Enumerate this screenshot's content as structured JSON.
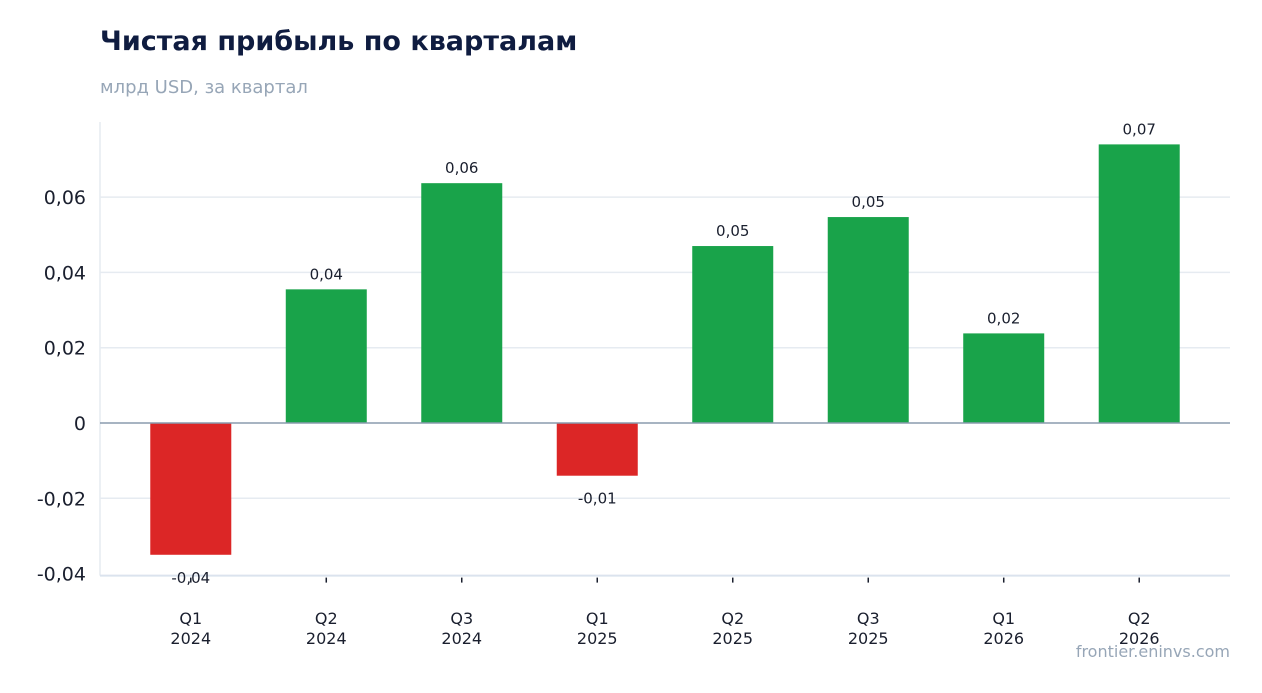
{
  "title": "Чистая прибыль по кварталам",
  "subtitle": "млрд USD, за квартал",
  "source": "frontier.eninvs.com",
  "colors": {
    "positive": "#19a34a",
    "negative": "#dc2626"
  },
  "chart_data": {
    "type": "bar",
    "categories": [
      [
        "Q1",
        "2024"
      ],
      [
        "Q2",
        "2024"
      ],
      [
        "Q3",
        "2024"
      ],
      [
        "Q1",
        "2025"
      ],
      [
        "Q2",
        "2025"
      ],
      [
        "Q3",
        "2025"
      ],
      [
        "Q1",
        "2026"
      ],
      [
        "Q2",
        "2026"
      ]
    ],
    "values": [
      -0.035,
      0.0355,
      0.0637,
      -0.014,
      0.047,
      0.0547,
      0.0238,
      0.074
    ],
    "value_labels": [
      "-0,04",
      "0,04",
      "0,06",
      "-0,01",
      "0,05",
      "0,05",
      "0,02",
      "0,07"
    ],
    "ylim": [
      -0.04,
      0.08
    ],
    "yticks": [
      -0.04,
      -0.02,
      0,
      0.02,
      0.04,
      0.06
    ],
    "ytick_labels": [
      "-0,04",
      "-0,02",
      "0",
      "0,02",
      "0,04",
      "0,06"
    ],
    "grid": true,
    "legend": "none"
  }
}
